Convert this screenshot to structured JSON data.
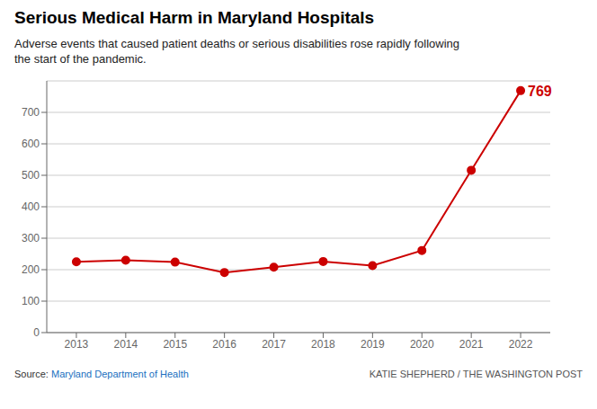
{
  "chart_data": {
    "type": "line",
    "title": "Serious Medical Harm in Maryland Hospitals",
    "subtitle": "Adverse events that caused patient deaths or serious disabilities rose rapidly following\nthe start of the pandemic.",
    "x": [
      2013,
      2014,
      2015,
      2016,
      2017,
      2018,
      2019,
      2020,
      2021,
      2022
    ],
    "values": [
      225,
      230,
      224,
      191,
      208,
      226,
      213,
      261,
      516,
      769
    ],
    "color": "#cc0000",
    "marker": "circle",
    "xlim": [
      2012.4,
      2022.6
    ],
    "xticks": [
      2013,
      2014,
      2015,
      2016,
      2017,
      2018,
      2019,
      2020,
      2021,
      2022
    ],
    "ylim": [
      0,
      800
    ],
    "yticks": [
      0,
      100,
      200,
      300,
      400,
      500,
      600,
      700
    ],
    "grid": true,
    "annotations": [
      {
        "x": 2022,
        "y": 769,
        "text": "769"
      }
    ],
    "source_text": "Source:",
    "source_link": "Maryland Department of Health",
    "credit_text": "KATIE SHEPHERD / THE WASHINGTON POST"
  }
}
